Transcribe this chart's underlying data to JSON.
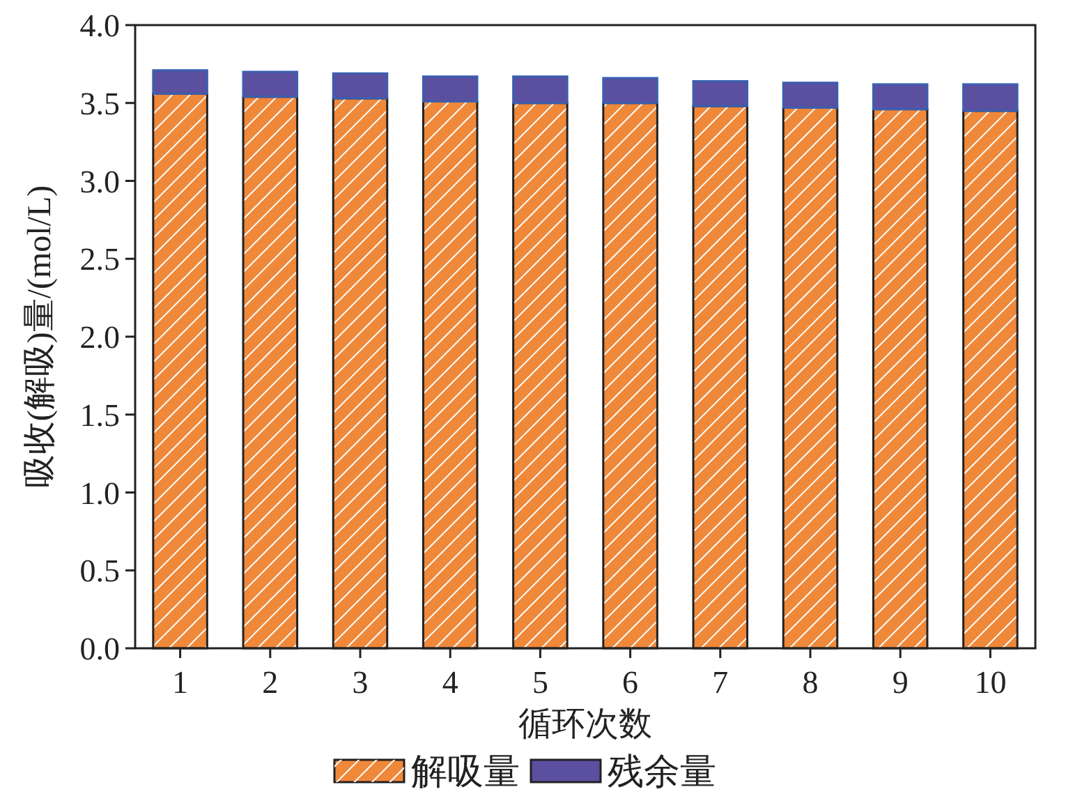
{
  "chart_data": {
    "type": "bar",
    "stacked": true,
    "xlabel": "循环次数",
    "ylabel": "吸收(解吸)量/(mol/L)",
    "categories": [
      "1",
      "2",
      "3",
      "4",
      "5",
      "6",
      "7",
      "8",
      "9",
      "10"
    ],
    "series": [
      {
        "name": "解吸量",
        "color": "#f0883a",
        "values": [
          3.56,
          3.54,
          3.53,
          3.51,
          3.5,
          3.5,
          3.48,
          3.47,
          3.46,
          3.45
        ]
      },
      {
        "name": "残余量",
        "color": "#5b4fa0",
        "values": [
          0.15,
          0.16,
          0.16,
          0.16,
          0.17,
          0.16,
          0.16,
          0.16,
          0.16,
          0.17
        ]
      }
    ],
    "ylim": [
      0,
      4.0
    ],
    "yticks": [
      {
        "value": 0,
        "label": "0.0"
      },
      {
        "value": 0.5,
        "label": "0.5"
      },
      {
        "value": 1,
        "label": "1.0"
      },
      {
        "value": 1.5,
        "label": "1.5"
      },
      {
        "value": 2,
        "label": "2.0"
      },
      {
        "value": 2.5,
        "label": "2.5"
      },
      {
        "value": 3,
        "label": "3.0"
      },
      {
        "value": 3.5,
        "label": "3.5"
      },
      {
        "value": 4,
        "label": "4.0"
      }
    ],
    "legend": "bottom",
    "grid": false
  }
}
